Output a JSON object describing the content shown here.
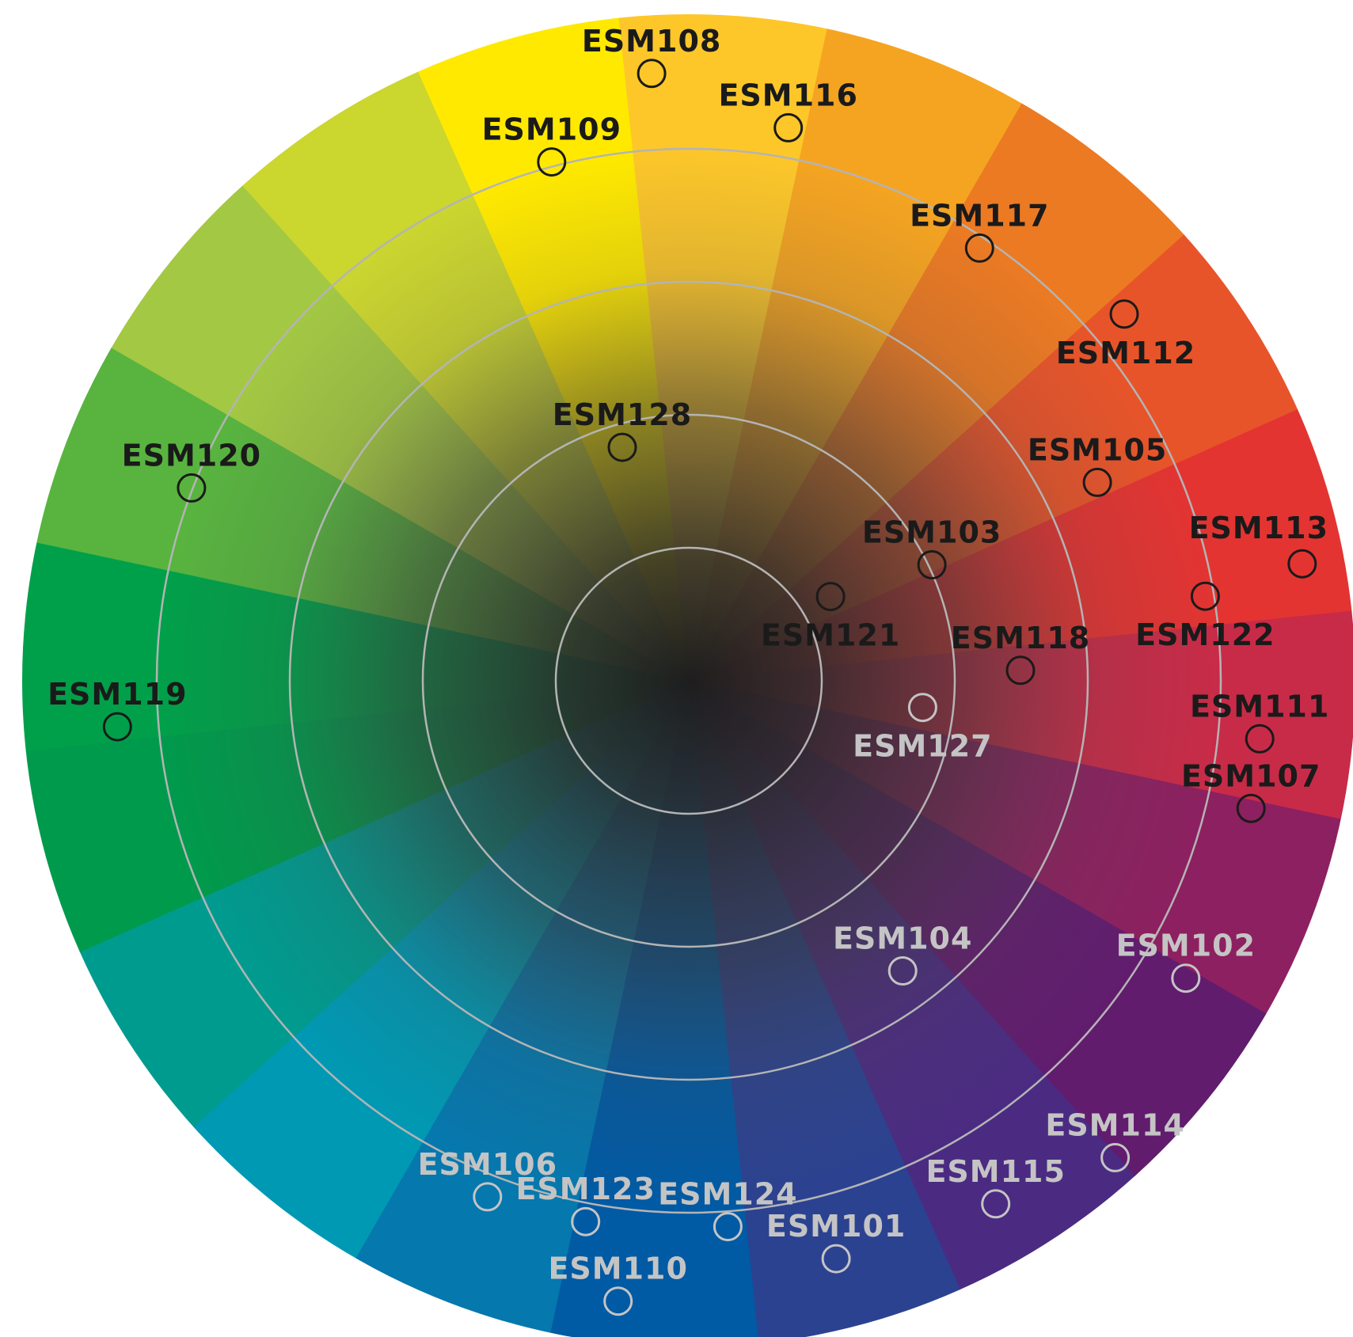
{
  "wheel": {
    "segment_colors": [
      "#ffe900",
      "#fdc72a",
      "#f5a421",
      "#ec7a23",
      "#e8542a",
      "#e33432",
      "#c82b48",
      "#8d2060",
      "#611c6e",
      "#4b2b82",
      "#2b4291",
      "#005aa4",
      "#0578ae",
      "#0099b4",
      "#009b8f",
      "#009a4c",
      "#00a04a",
      "#58b43f",
      "#a3c843",
      "#cbd62f",
      "#f1e80a",
      "#ffe900"
    ],
    "ring_color": "#b4b4b4",
    "center_color": "#1e1e1e"
  },
  "markers": [
    {
      "id": "ESM108",
      "label": "ESM108",
      "tone": "dark",
      "angle_deg": -93.5,
      "radius": 0.915
    },
    {
      "id": "ESM116",
      "label": "ESM116",
      "tone": "dark",
      "angle_deg": -79.8,
      "radius": 0.845
    },
    {
      "id": "ESM109",
      "label": "ESM109",
      "tone": "dark",
      "angle_deg": -104.8,
      "radius": 0.807
    },
    {
      "id": "ESM117",
      "label": "ESM117",
      "tone": "dark",
      "angle_deg": -56.1,
      "radius": 0.784
    },
    {
      "id": "ESM112",
      "label": "ESM112",
      "tone": "dark",
      "angle_deg": -40.1,
      "radius": 0.856
    },
    {
      "id": "ESM105",
      "label": "ESM105",
      "tone": "dark",
      "angle_deg": -25.9,
      "radius": 0.683
    },
    {
      "id": "ESM128",
      "label": "ESM128",
      "tone": "dark",
      "angle_deg": -105.9,
      "radius": 0.365
    },
    {
      "id": "ESM120",
      "label": "ESM120",
      "tone": "dark",
      "angle_deg": -158.8,
      "radius": 0.802
    },
    {
      "id": "ESM103",
      "label": "ESM103",
      "tone": "dark",
      "angle_deg": -25.5,
      "radius": 0.405
    },
    {
      "id": "ESM113",
      "label": "ESM113",
      "tone": "dark",
      "angle_deg": -10.8,
      "radius": 0.939
    },
    {
      "id": "ESM122",
      "label": "ESM122",
      "tone": "dark",
      "angle_deg": -9.3,
      "radius": 0.787
    },
    {
      "id": "ESM121",
      "label": "ESM121",
      "tone": "dark",
      "angle_deg": -30.7,
      "radius": 0.248
    },
    {
      "id": "ESM118",
      "label": "ESM118",
      "tone": "dark",
      "angle_deg": -1.8,
      "radius": 0.499
    },
    {
      "id": "ESM119",
      "label": "ESM119",
      "tone": "dark",
      "angle_deg": 175.4,
      "radius": 0.862
    },
    {
      "id": "ESM111",
      "label": "ESM111",
      "tone": "dark",
      "angle_deg": 5.8,
      "radius": 0.863
    },
    {
      "id": "ESM107",
      "label": "ESM107",
      "tone": "dark",
      "angle_deg": 12.8,
      "radius": 0.867
    },
    {
      "id": "ESM127",
      "label": "ESM127",
      "tone": "light",
      "angle_deg": 6.5,
      "radius": 0.354
    },
    {
      "id": "ESM104",
      "label": "ESM104",
      "tone": "light",
      "angle_deg": 53.6,
      "radius": 0.542
    },
    {
      "id": "ESM102",
      "label": "ESM102",
      "tone": "light",
      "angle_deg": 30.9,
      "radius": 0.871
    },
    {
      "id": "ESM114",
      "label": "ESM114",
      "tone": "light",
      "angle_deg": 48.2,
      "radius": 0.962
    },
    {
      "id": "ESM115",
      "label": "ESM115",
      "tone": "light",
      "angle_deg": 59.6,
      "radius": 0.912
    },
    {
      "id": "ESM106",
      "label": "ESM106",
      "tone": "light",
      "angle_deg": 111.3,
      "radius": 0.833
    },
    {
      "id": "ESM123",
      "label": "ESM123",
      "tone": "light",
      "angle_deg": 100.8,
      "radius": 0.828
    },
    {
      "id": "ESM124",
      "label": "ESM124",
      "tone": "light",
      "angle_deg": 85.9,
      "radius": 0.823
    },
    {
      "id": "ESM101",
      "label": "ESM101",
      "tone": "light",
      "angle_deg": 75.7,
      "radius": 0.897
    },
    {
      "id": "ESM110",
      "label": "ESM110",
      "tone": "light",
      "angle_deg": 96.5,
      "radius": 0.939
    }
  ]
}
